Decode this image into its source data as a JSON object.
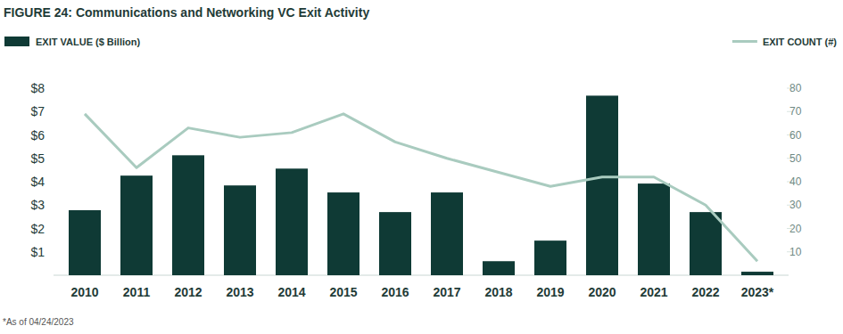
{
  "chart_data": {
    "type": "bar",
    "title": "FIGURE 24:  Communications and Networking VC Exit Activity",
    "footnote": "*As of 04/24/2023",
    "categories": [
      "2010",
      "2011",
      "2012",
      "2013",
      "2014",
      "2015",
      "2016",
      "2017",
      "2018",
      "2019",
      "2020",
      "2021",
      "2022",
      "2023*"
    ],
    "series": [
      {
        "name": "EXIT VALUE ($ Billion)",
        "type": "bar",
        "color": "#0f3a35",
        "values": [
          2.78,
          4.26,
          5.13,
          3.84,
          4.56,
          3.54,
          2.7,
          3.54,
          0.6,
          1.48,
          7.68,
          3.92,
          2.7,
          0.15
        ]
      },
      {
        "name": "EXIT COUNT (#)",
        "type": "line",
        "axis": "y2",
        "color": "#a9cbbf",
        "values": [
          69,
          46,
          63,
          59,
          61,
          69,
          57,
          50,
          44,
          38,
          42,
          42,
          30,
          6
        ]
      }
    ],
    "ylim": [
      0,
      8
    ],
    "yticks": [
      {
        "value": 1,
        "label": "$1"
      },
      {
        "value": 2,
        "label": "$2"
      },
      {
        "value": 3,
        "label": "$3"
      },
      {
        "value": 4,
        "label": "$4"
      },
      {
        "value": 5,
        "label": "$5"
      },
      {
        "value": 6,
        "label": "$6"
      },
      {
        "value": 7,
        "label": "$7"
      },
      {
        "value": 8,
        "label": "$8"
      }
    ],
    "y2lim": [
      0,
      80
    ],
    "y2ticks": [
      10,
      20,
      30,
      40,
      50,
      60,
      70,
      80
    ],
    "grid": false,
    "legend": "top"
  }
}
